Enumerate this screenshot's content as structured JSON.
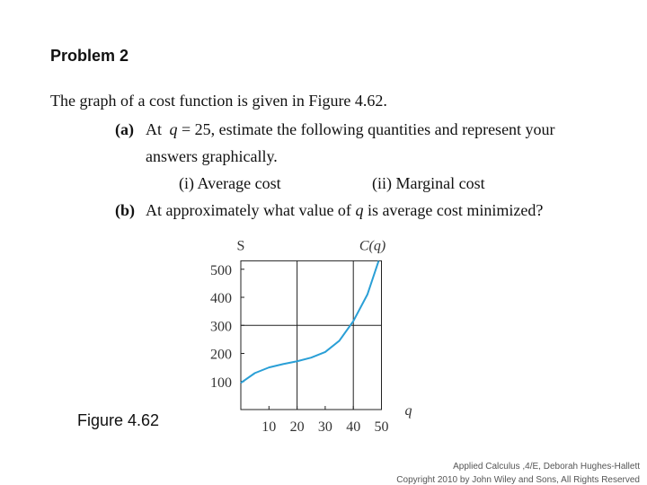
{
  "slide": {
    "title": "Problem 2",
    "intro": "The graph of a cost function is given in Figure 4.62.",
    "part_a": {
      "label": "(a)",
      "text": [
        "At ",
        "q",
        " = 25, estimate the following quantities and represent your",
        "answers graphically."
      ],
      "sub_i": "(i)  Average cost",
      "sub_ii": "(ii)  Marginal cost"
    },
    "part_b": {
      "label": "(b)",
      "text": [
        "At approximately what value of ",
        "q",
        " is average cost minimized?"
      ]
    },
    "figure_caption": "Figure 4.62",
    "footer": [
      "Applied Calculus ,4/E, Deborah Hughes-Hallett",
      "Copyright 2010 by John Wiley and Sons, All Rights Reserved"
    ]
  },
  "chart_data": {
    "type": "line",
    "y_label": "S",
    "x_label": "q",
    "curve_label": "C(q)",
    "x": [
      0,
      5,
      10,
      15,
      20,
      25,
      30,
      35,
      40,
      45,
      49
    ],
    "series": [
      {
        "name": "C(q)",
        "color": "#2a9fd6",
        "values": [
          95,
          130,
          150,
          162,
          172,
          185,
          205,
          245,
          315,
          410,
          530
        ]
      }
    ],
    "xlim": [
      0,
      50
    ],
    "ylim": [
      0,
      530
    ],
    "xticks": [
      10,
      20,
      30,
      40,
      50
    ],
    "yticks": [
      100,
      200,
      300,
      400,
      500
    ],
    "x_grid": [
      20,
      40
    ],
    "y_grid": [
      300
    ]
  }
}
